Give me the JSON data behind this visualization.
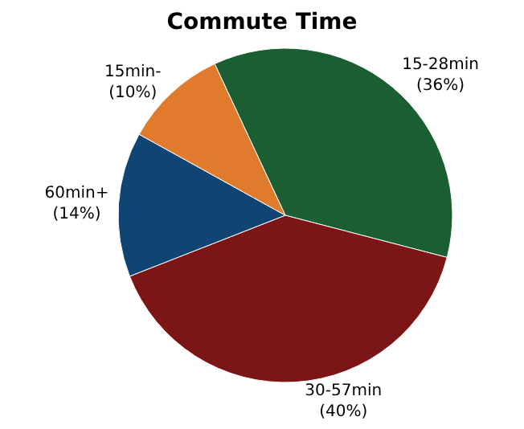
{
  "chart_data": {
    "type": "pie",
    "title": "Commute Time",
    "categories": [
      "15-28min",
      "30-57min",
      "60min+",
      "15min-"
    ],
    "values": [
      36,
      40,
      14,
      10
    ],
    "colors": [
      "#1a5e32",
      "#7c1515",
      "#104573",
      "#e07a2c"
    ],
    "value_labels": [
      "(36%)",
      "(40%)",
      "(14%)",
      "(10%)"
    ],
    "legend": false
  }
}
